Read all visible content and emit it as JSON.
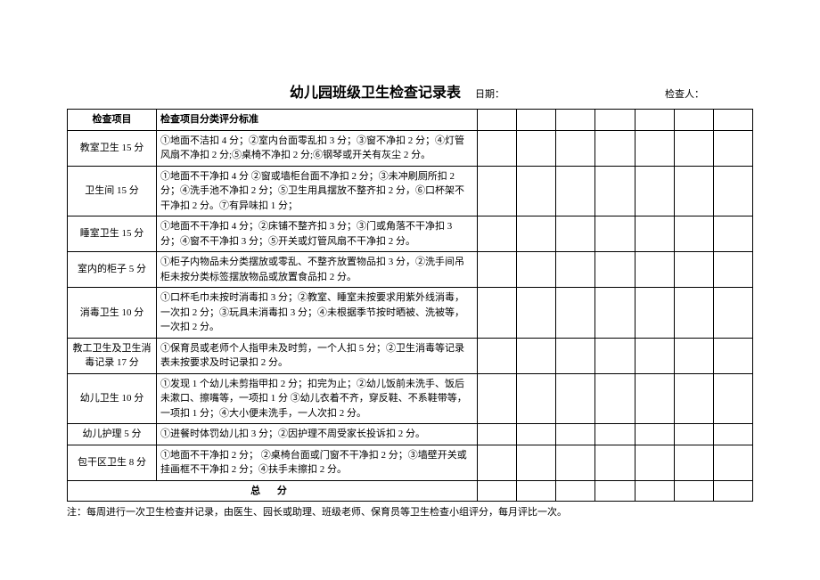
{
  "header": {
    "title": "幼儿园班级卫生检查记录表",
    "date_label": "日期：",
    "inspector_label": "检查人："
  },
  "table": {
    "columns": {
      "item": "检查项目",
      "criteria": "检查项目分类评分标准"
    },
    "blank_col_count": 7,
    "rows": [
      {
        "item": "教室卫生 15 分",
        "criteria": "①地面不洁扣 4 分；②室内台面零乱扣 3 分；③窗不净扣 2 分；④灯管风扇不净扣 2 分;⑤桌椅不净扣 2 分;⑥钢琴或开关有灰尘 2 分。"
      },
      {
        "item": "卫生间 15 分",
        "criteria": "①地面不干净扣 4 分 ②窗或墙柜台面不净扣 2 分；③未冲刷厕所扣 2 分；④洗手池不净扣 2 分；⑤卫生用具摆放不整齐扣 2 分，⑥口杯架不干净扣 2 分。⑦有异味扣 1 分；"
      },
      {
        "item": "睡室卫生 15 分",
        "criteria": "①地面不干净扣 4 分；②床铺不整齐扣 3 分；③门或角落不干净扣 3 分；④窗不干净扣 3 分；⑤开关或灯管风扇不干净扣 2 分。"
      },
      {
        "item": "室内的柜子 5 分",
        "criteria": "①柜子内物品未分类摆放或零乱、不整齐放置物品扣 3 分，②洗手间吊柜未按分类标签摆放物品或放置食品扣 2 分。"
      },
      {
        "item": "消毒卫生 10 分",
        "criteria": "①口杯毛巾未按时消毒扣 3 分；②教室、睡室未按要求用紫外线消毒，一次扣 2 分；③玩具未消毒扣 3 分；④未根据季节按时晒被、洗被等，一次扣 2 分。"
      },
      {
        "item": "教工卫生及卫生消毒记录 17 分",
        "criteria": "①保育员或老师个人指甲未及时剪，一个人扣 5 分；②卫生消毒等记录表未按要求及时记录扣 2 分。"
      },
      {
        "item": "幼儿卫生 10 分",
        "criteria": "①发现 1 个幼儿未剪指甲扣 2 分；扣完为止；②幼儿饭前未洗手、饭后未漱口、擦嘴等，一项扣 1 分 ③幼儿衣着不齐，穿反鞋、不系鞋带等，一项扣 1 分；④大小便未洗手，一人次扣 2 分。"
      },
      {
        "item": "幼儿护理 5 分",
        "criteria": "①进餐时体罚幼儿扣 3 分；②因护理不周受家长投诉扣 2 分。"
      },
      {
        "item": "包干区卫生 8 分",
        "criteria": "①地面不干净扣 2 分； ②桌椅台面或门窗不干净扣 2 分；③墙壁开关或挂画框不干净扣 2 分；④扶手未擦扣 2 分。"
      }
    ],
    "total_label": "总 分"
  },
  "footnote": "注：每周进行一次卫生检查并记录，由医生、园长或助理、班级老师、保育员等卫生检查小组评分，每月评比一次。"
}
